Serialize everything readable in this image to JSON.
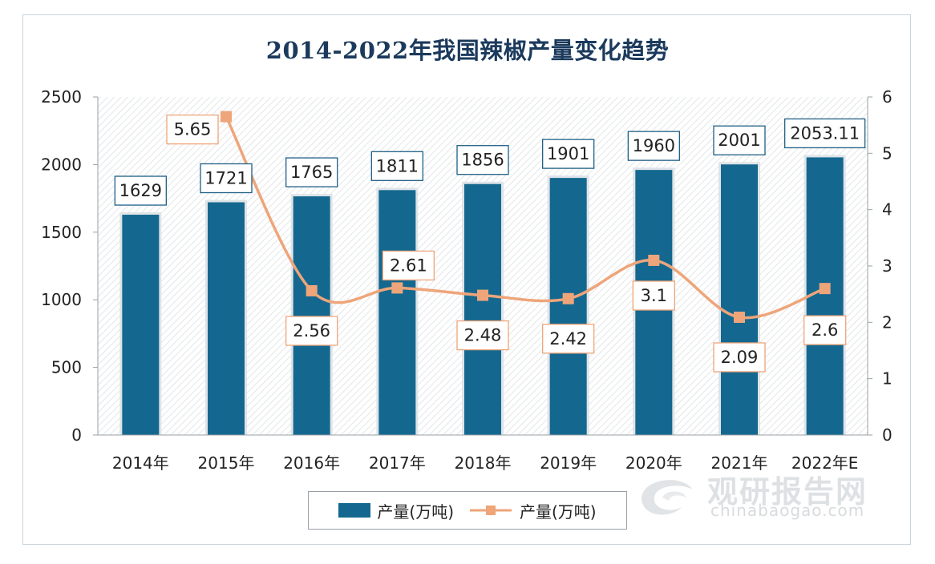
{
  "colors": {
    "bar": "#14688f",
    "line": "#eea57a",
    "line_label_border": "#eea57a",
    "bar_label_border": "#1f5f86",
    "title": "#1b3a5c"
  },
  "watermark": {
    "chinese": "观研报告网",
    "english": "chinabaogao.com",
    "icon": "logo-swirl-icon"
  },
  "chart_data": {
    "type": "bar",
    "title": "2014-2022年我国辣椒产量变化趋势",
    "categories": [
      "2014年",
      "2015年",
      "2016年",
      "2017年",
      "2018年",
      "2019年",
      "2020年",
      "2021年",
      "2022年E"
    ],
    "series": [
      {
        "name": "产量(万吨)",
        "type": "bar",
        "axis": "left",
        "values": [
          1629,
          1721,
          1765,
          1811,
          1856,
          1901,
          1960,
          2001,
          2053.11
        ],
        "labels": [
          "1629",
          "1721",
          "1765",
          "1811",
          "1856",
          "1901",
          "1960",
          "2001",
          "2053.11"
        ]
      },
      {
        "name": "产量(万吨)",
        "type": "line",
        "axis": "right",
        "values": [
          null,
          5.65,
          2.56,
          2.61,
          2.48,
          2.42,
          3.1,
          2.09,
          2.6
        ],
        "labels": [
          null,
          "5.65",
          "2.56",
          "2.61",
          "2.48",
          "2.42",
          "3.1",
          "2.09",
          "2.6"
        ]
      }
    ],
    "ylim": [
      0,
      2500
    ],
    "yticks": [
      0,
      500,
      1000,
      1500,
      2000,
      2500
    ],
    "y2lim": [
      0,
      6
    ],
    "y2ticks": [
      0,
      1,
      2,
      3,
      4,
      5,
      6
    ],
    "legend": "bottom",
    "grid": false,
    "background": "diagonal-hatch"
  }
}
